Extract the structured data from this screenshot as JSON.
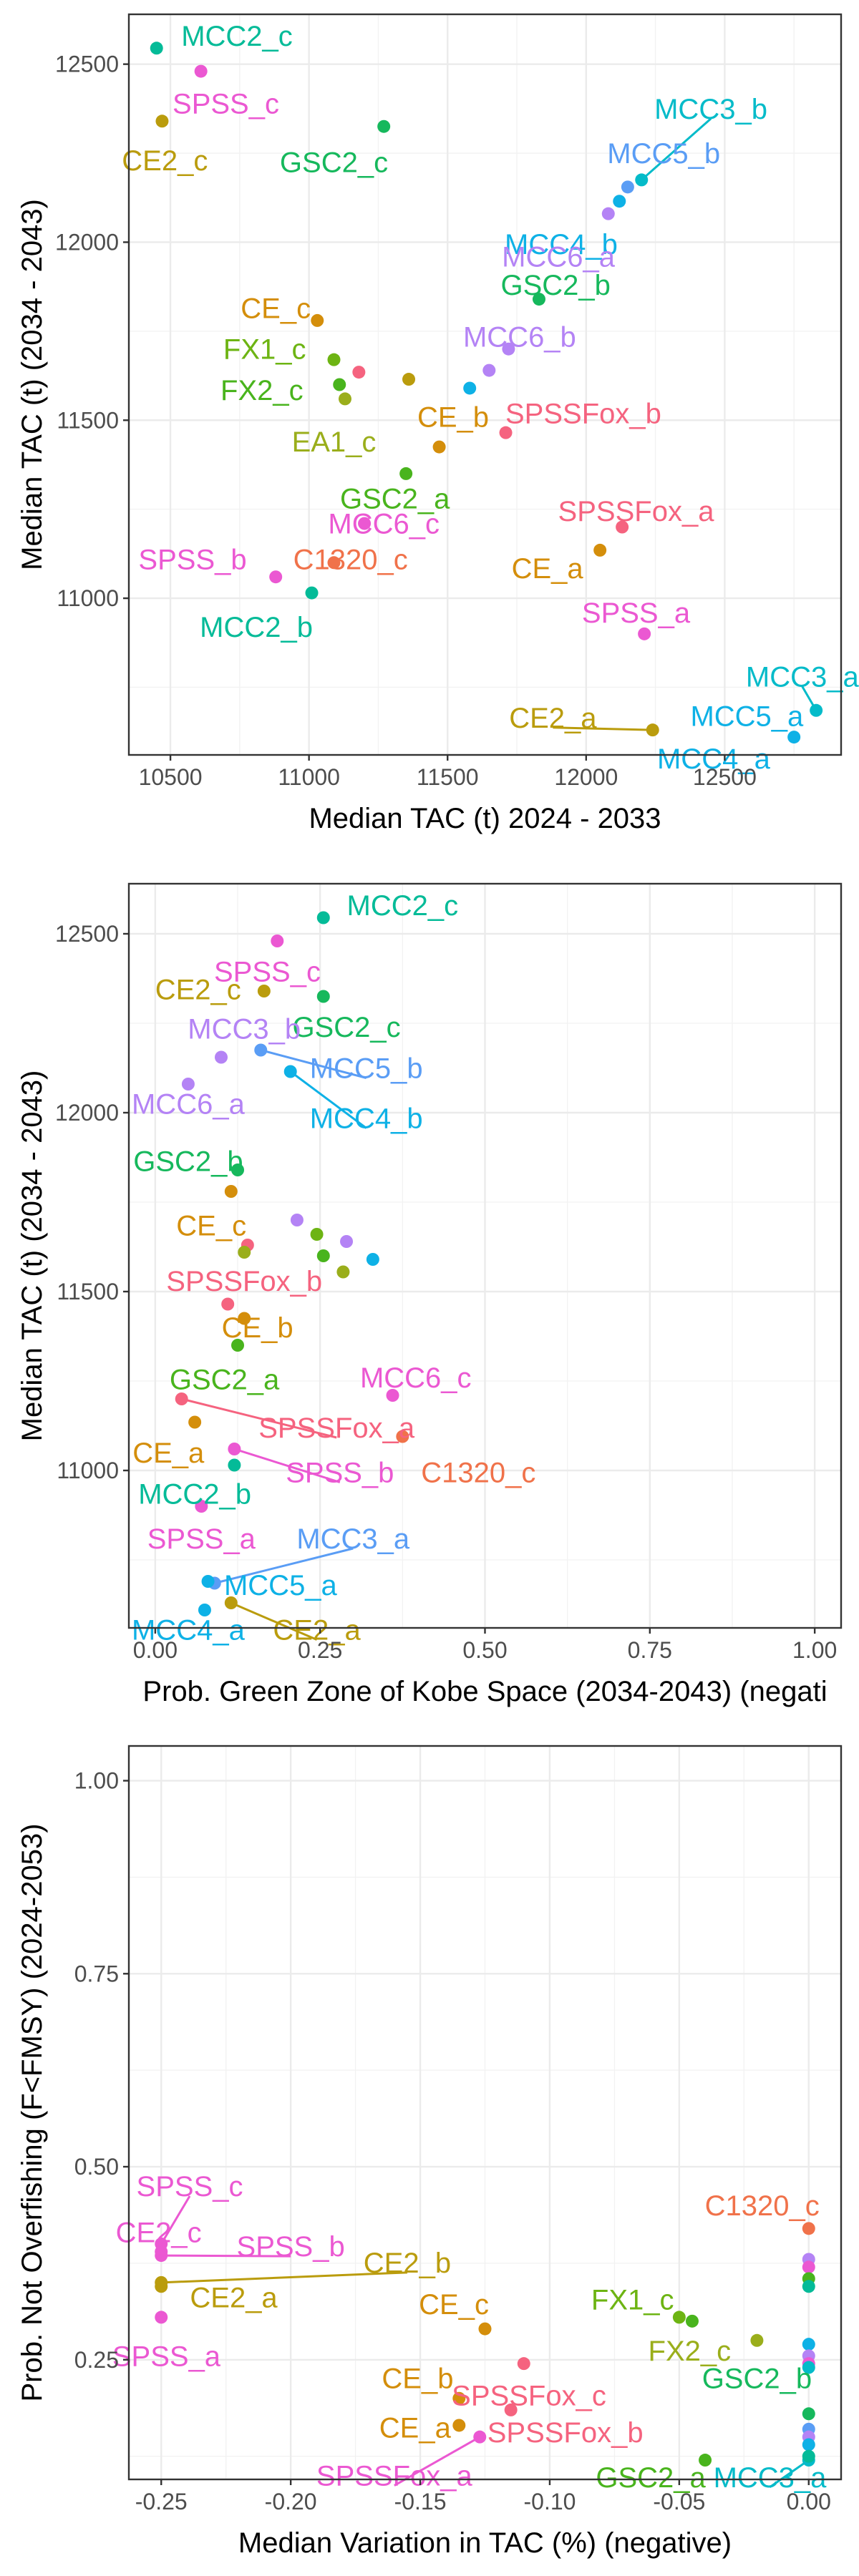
{
  "colors": {
    "C1320": "#F0724A",
    "CE": "#D48E0B",
    "CE2": "#BA9C0D",
    "EA1": "#9AAE1B",
    "FX1": "#6DB413",
    "FX2": "#49B41D",
    "GSC2": "#16B85C",
    "MCC2": "#04BB98",
    "MCC3": "#04BBC9",
    "MCC4": "#0EB1E6",
    "MCC5": "#5A9DF5",
    "MCC6": "#B483F5",
    "SPSS": "#EB58D2",
    "SPSSFox": "#F5637F"
  },
  "chart_data": [
    {
      "type": "scatter",
      "title": "",
      "xlabel": "Median TAC (t) 2024 - 2033",
      "ylabel": "Median TAC (t) (2034 - 2043)",
      "xlim": [
        10350,
        12920
      ],
      "ylim": [
        10560,
        12640
      ],
      "xticks": [
        10500,
        11000,
        11500,
        12000,
        12500
      ],
      "yticks": [
        11000,
        11500,
        12000,
        12500
      ],
      "grid": true,
      "points": [
        {
          "name": "MCC2_c",
          "x": 10450,
          "y": 12545,
          "group": "MCC2",
          "lx": 10740,
          "ly": 12580,
          "ha": "middle"
        },
        {
          "name": "SPSS_c",
          "x": 10610,
          "y": 12480,
          "group": "SPSS",
          "lx": 10700,
          "ly": 12390,
          "ha": "middle"
        },
        {
          "name": "CE2_c",
          "x": 10470,
          "y": 12340,
          "group": "CE2",
          "lx": 10480,
          "ly": 12230,
          "ha": "middle"
        },
        {
          "name": "GSC2_c",
          "x": 11270,
          "y": 12325,
          "group": "GSC2",
          "lx": 11090,
          "ly": 12225,
          "ha": "middle"
        },
        {
          "name": "MCC3_b",
          "x": 12200,
          "y": 12175,
          "group": "MCC3",
          "lx": 12450,
          "ly": 12375,
          "ha": "middle",
          "line": true
        },
        {
          "name": "MCC5_b",
          "x": 12150,
          "y": 12155,
          "group": "MCC5",
          "lx": 12280,
          "ly": 12250,
          "ha": "middle"
        },
        {
          "name": "MCC4_b",
          "x": 12120,
          "y": 12115,
          "group": "MCC4",
          "lx": 11910,
          "ly": 11995,
          "ha": "middle"
        },
        {
          "name": "MCC6_a",
          "x": 12080,
          "y": 12080,
          "group": "MCC6",
          "lx": 11900,
          "ly": 11960,
          "ha": "middle"
        },
        {
          "name": "GSC2_b",
          "x": 11830,
          "y": 11840,
          "group": "GSC2",
          "lx": 11890,
          "ly": 11880,
          "ha": "middle"
        },
        {
          "name": "MCC6_b",
          "x": 11720,
          "y": 11700,
          "group": "MCC6",
          "lx": 11760,
          "ly": 11735,
          "ha": "middle"
        },
        {
          "name": "CE_c",
          "x": 11030,
          "y": 11780,
          "group": "CE",
          "lx": 10880,
          "ly": 11815,
          "ha": "middle"
        },
        {
          "name": "FX1_c",
          "x": 11090,
          "y": 11670,
          "group": "FX1",
          "lx": 10840,
          "ly": 11700,
          "ha": "middle"
        },
        {
          "name": "FX2_c",
          "x": 11110,
          "y": 11600,
          "group": "FX2",
          "lx": 10830,
          "ly": 11585,
          "ha": "middle"
        },
        {
          "name": "EA1_c",
          "x": 11130,
          "y": 11560,
          "group": "EA1",
          "lx": 11090,
          "ly": 11440,
          "ha": "middle"
        },
        {
          "name": "x1",
          "x": 11180,
          "y": 11635,
          "group": "SPSSFox"
        },
        {
          "name": "x2",
          "x": 11360,
          "y": 11615,
          "group": "CE2"
        },
        {
          "name": "x3",
          "x": 11650,
          "y": 11640,
          "group": "MCC6"
        },
        {
          "name": "x4",
          "x": 11580,
          "y": 11590,
          "group": "MCC4"
        },
        {
          "name": "CE_b",
          "x": 11470,
          "y": 11425,
          "group": "CE",
          "lx": 11520,
          "ly": 11510,
          "ha": "middle"
        },
        {
          "name": "SPSSFox_b",
          "x": 11710,
          "y": 11465,
          "group": "SPSSFox",
          "lx": 11990,
          "ly": 11520,
          "ha": "middle"
        },
        {
          "name": "GSC2_a",
          "x": 11350,
          "y": 11350,
          "group": "FX2",
          "lx": 11310,
          "ly": 11280,
          "ha": "middle"
        },
        {
          "name": "MCC6_c",
          "x": 11200,
          "y": 11210,
          "group": "SPSS",
          "lx": 11270,
          "ly": 11210,
          "ha": "middle"
        },
        {
          "name": "C1320_c",
          "x": 11090,
          "y": 11100,
          "group": "C1320",
          "lx": 11150,
          "ly": 11110,
          "ha": "middle"
        },
        {
          "name": "SPSS_b",
          "x": 10880,
          "y": 11060,
          "group": "SPSS",
          "lx": 10580,
          "ly": 11110,
          "ha": "middle"
        },
        {
          "name": "MCC2_b",
          "x": 11010,
          "y": 11015,
          "group": "MCC2",
          "lx": 10810,
          "ly": 10920,
          "ha": "middle"
        },
        {
          "name": "SPSSFox_a",
          "x": 12130,
          "y": 11200,
          "group": "SPSSFox",
          "lx": 12180,
          "ly": 11245,
          "ha": "middle"
        },
        {
          "name": "CE_a",
          "x": 12050,
          "y": 11135,
          "group": "CE",
          "lx": 11860,
          "ly": 11085,
          "ha": "middle"
        },
        {
          "name": "SPSS_a",
          "x": 12210,
          "y": 10900,
          "group": "SPSS",
          "lx": 12180,
          "ly": 10960,
          "ha": "middle"
        },
        {
          "name": "MCC3_a",
          "x": 12830,
          "y": 10685,
          "group": "MCC3",
          "lx": 12780,
          "ly": 10780,
          "ha": "middle",
          "line": true
        },
        {
          "name": "MCC5_a",
          "x": 12750,
          "y": 10610,
          "group": "MCC4",
          "lx": 12580,
          "ly": 10670,
          "ha": "middle"
        },
        {
          "name": "MCC4_a",
          "x": 12750,
          "y": 10610,
          "group": "MCC4",
          "lx": 12460,
          "ly": 10550,
          "ha": "middle",
          "hide_point": true
        },
        {
          "name": "CE2_a",
          "x": 12240,
          "y": 10630,
          "group": "CE2",
          "lx": 11880,
          "ly": 10665,
          "ha": "middle",
          "line": true
        }
      ]
    },
    {
      "type": "scatter",
      "title": "",
      "xlabel": "Prob. Green Zone of Kobe Space (2034-2043) (negati",
      "ylabel": "Median TAC (t) (2034 - 2043)",
      "xlim": [
        -0.04,
        1.04
      ],
      "ylim": [
        10560,
        12640
      ],
      "xticks": [
        0.0,
        0.25,
        0.5,
        0.75,
        1.0
      ],
      "xtick_labels": [
        "0.00",
        "0.25",
        "0.50",
        "0.75",
        "1.00"
      ],
      "yticks": [
        11000,
        11500,
        12000,
        12500
      ],
      "grid": true,
      "points": [
        {
          "name": "MCC2_c",
          "x": 0.255,
          "y": 12545,
          "group": "MCC2",
          "lx": 0.375,
          "ly": 12580,
          "ha": "middle"
        },
        {
          "name": "SPSS_c",
          "x": 0.185,
          "y": 12480,
          "group": "SPSS",
          "lx": 0.17,
          "ly": 12395,
          "ha": "middle"
        },
        {
          "name": "CE2_c",
          "x": 0.165,
          "y": 12340,
          "group": "CE2",
          "lx": 0.065,
          "ly": 12345,
          "ha": "middle"
        },
        {
          "name": "GSC2_c",
          "x": 0.255,
          "y": 12325,
          "group": "GSC2",
          "lx": 0.29,
          "ly": 12240,
          "ha": "middle"
        },
        {
          "name": "MCC3_b",
          "x": 0.1,
          "y": 12155,
          "group": "MCC6",
          "lx": 0.135,
          "ly": 12235,
          "ha": "middle"
        },
        {
          "name": "MCC5_b",
          "x": 0.16,
          "y": 12175,
          "group": "MCC5",
          "lx": 0.32,
          "ly": 12125,
          "ha": "middle",
          "line": true
        },
        {
          "name": "MCC4_b",
          "x": 0.205,
          "y": 12115,
          "group": "MCC4",
          "lx": 0.32,
          "ly": 11985,
          "ha": "middle",
          "line": true
        },
        {
          "name": "MCC6_a",
          "x": 0.05,
          "y": 12080,
          "group": "MCC6",
          "lx": 0.05,
          "ly": 12025,
          "ha": "middle"
        },
        {
          "name": "GSC2_b",
          "x": 0.125,
          "y": 11840,
          "group": "GSC2",
          "lx": 0.05,
          "ly": 11865,
          "ha": "middle"
        },
        {
          "name": "CE_c",
          "x": 0.115,
          "y": 11780,
          "group": "CE",
          "lx": 0.085,
          "ly": 11685,
          "ha": "middle"
        },
        {
          "name": "x1",
          "x": 0.215,
          "y": 11700,
          "group": "MCC6"
        },
        {
          "name": "x2",
          "x": 0.245,
          "y": 11660,
          "group": "FX1"
        },
        {
          "name": "x3",
          "x": 0.29,
          "y": 11640,
          "group": "MCC6"
        },
        {
          "name": "x4",
          "x": 0.14,
          "y": 11630,
          "group": "SPSSFox"
        },
        {
          "name": "x5",
          "x": 0.135,
          "y": 11610,
          "group": "EA1"
        },
        {
          "name": "x6",
          "x": 0.255,
          "y": 11600,
          "group": "FX2"
        },
        {
          "name": "x7",
          "x": 0.33,
          "y": 11590,
          "group": "MCC4"
        },
        {
          "name": "x8",
          "x": 0.285,
          "y": 11555,
          "group": "EA1"
        },
        {
          "name": "SPSSFox_b",
          "x": 0.11,
          "y": 11465,
          "group": "SPSSFox",
          "lx": 0.135,
          "ly": 11530,
          "ha": "middle"
        },
        {
          "name": "CE_b",
          "x": 0.135,
          "y": 11425,
          "group": "CE",
          "lx": 0.155,
          "ly": 11400,
          "ha": "middle"
        },
        {
          "name": "GSC2_a",
          "x": 0.125,
          "y": 11350,
          "group": "FX2",
          "lx": 0.105,
          "ly": 11255,
          "ha": "middle"
        },
        {
          "name": "MCC6_c",
          "x": 0.36,
          "y": 11210,
          "group": "SPSS",
          "lx": 0.395,
          "ly": 11260,
          "ha": "middle"
        },
        {
          "name": "SPSSFox_a",
          "x": 0.04,
          "y": 11200,
          "group": "SPSSFox",
          "lx": 0.275,
          "ly": 11120,
          "ha": "middle",
          "line": true
        },
        {
          "name": "CE_a",
          "x": 0.06,
          "y": 11135,
          "group": "CE",
          "lx": 0.02,
          "ly": 11050,
          "ha": "middle"
        },
        {
          "name": "SPSS_b",
          "x": 0.12,
          "y": 11060,
          "group": "SPSS",
          "lx": 0.28,
          "ly": 10995,
          "ha": "middle",
          "line": true
        },
        {
          "name": "C1320_c",
          "x": 0.375,
          "y": 11095,
          "group": "C1320",
          "lx": 0.49,
          "ly": 10995,
          "ha": "middle"
        },
        {
          "name": "MCC2_b",
          "x": 0.12,
          "y": 11015,
          "group": "MCC2",
          "lx": 0.06,
          "ly": 10935,
          "ha": "middle"
        },
        {
          "name": "SPSS_a",
          "x": 0.07,
          "y": 10900,
          "group": "SPSS",
          "lx": 0.07,
          "ly": 10810,
          "ha": "middle"
        },
        {
          "name": "MCC3_a",
          "x": 0.09,
          "y": 10685,
          "group": "MCC5",
          "lx": 0.3,
          "ly": 10810,
          "ha": "middle",
          "line": true
        },
        {
          "name": "MCC5_a",
          "x": 0.08,
          "y": 10690,
          "group": "MCC4",
          "lx": 0.19,
          "ly": 10680,
          "ha": "middle"
        },
        {
          "name": "MCC4_a",
          "x": 0.075,
          "y": 10610,
          "group": "MCC4",
          "lx": 0.05,
          "ly": 10555,
          "ha": "middle"
        },
        {
          "name": "CE2_a",
          "x": 0.115,
          "y": 10630,
          "group": "CE2",
          "lx": 0.245,
          "ly": 10555,
          "ha": "middle",
          "line": true
        }
      ]
    },
    {
      "type": "scatter",
      "title": "",
      "xlabel": "Median Variation in TAC (%) (negative)",
      "ylabel": "Prob. Not Overfishing (F<FMSY) (2024-2053)",
      "xlim": [
        -0.2625,
        0.0125
      ],
      "ylim": [
        0.095,
        1.045
      ],
      "xticks": [
        -0.25,
        -0.2,
        -0.15,
        -0.1,
        -0.05,
        0.0
      ],
      "xtick_labels": [
        "-0.25",
        "-0.20",
        "-0.15",
        "-0.10",
        "-0.05",
        "0.00"
      ],
      "yticks": [
        0.25,
        0.5,
        0.75,
        1.0
      ],
      "ytick_labels": [
        "0.25",
        "0.50",
        "0.75",
        "1.00"
      ],
      "grid": true,
      "points": [
        {
          "name": "SPSS_c",
          "x": -0.25,
          "y": 0.4,
          "group": "SPSS",
          "lx": -0.239,
          "ly": 0.475,
          "ha": "middle",
          "line": true
        },
        {
          "name": "CE2_c",
          "x": -0.25,
          "y": 0.39,
          "group": "SPSS",
          "lx": -0.251,
          "ly": 0.415,
          "ha": "middle"
        },
        {
          "name": "SPSS_b",
          "x": -0.25,
          "y": 0.385,
          "group": "SPSS",
          "lx": -0.2,
          "ly": 0.397,
          "ha": "middle",
          "line": true
        },
        {
          "name": "CE2_b",
          "x": -0.25,
          "y": 0.35,
          "group": "CE2",
          "lx": -0.155,
          "ly": 0.376,
          "ha": "middle",
          "line": true
        },
        {
          "name": "CE2_a",
          "x": -0.25,
          "y": 0.345,
          "group": "CE2",
          "lx": -0.222,
          "ly": 0.331,
          "ha": "middle"
        },
        {
          "name": "SPSS_a",
          "x": -0.25,
          "y": 0.305,
          "group": "SPSS",
          "lx": -0.248,
          "ly": 0.255,
          "ha": "middle"
        },
        {
          "name": "C1320_c",
          "x": 0.0,
          "y": 0.42,
          "group": "C1320",
          "lx": -0.018,
          "ly": 0.45,
          "ha": "middle"
        },
        {
          "name": "FX1_c",
          "x": -0.05,
          "y": 0.305,
          "group": "FX1",
          "lx": -0.068,
          "ly": 0.328,
          "ha": "middle"
        },
        {
          "name": "x_fx",
          "x": -0.045,
          "y": 0.3,
          "group": "FX2"
        },
        {
          "name": "FX2_c",
          "x": -0.02,
          "y": 0.275,
          "group": "EA1",
          "lx": -0.046,
          "ly": 0.262,
          "ha": "middle"
        },
        {
          "name": "CE_c",
          "x": -0.125,
          "y": 0.29,
          "group": "CE",
          "lx": -0.137,
          "ly": 0.322,
          "ha": "middle"
        },
        {
          "name": "CE_b",
          "x": -0.135,
          "y": 0.2,
          "group": "CE",
          "lx": -0.151,
          "ly": 0.226,
          "ha": "middle"
        },
        {
          "name": "SPSSFox_c",
          "x": -0.11,
          "y": 0.245,
          "group": "SPSSFox",
          "lx": -0.108,
          "ly": 0.204,
          "ha": "middle"
        },
        {
          "name": "CE_a",
          "x": -0.135,
          "y": 0.165,
          "group": "CE",
          "lx": -0.152,
          "ly": 0.162,
          "ha": "middle"
        },
        {
          "name": "SPSSFox_b",
          "x": -0.115,
          "y": 0.185,
          "group": "SPSSFox",
          "lx": -0.094,
          "ly": 0.156,
          "ha": "middle"
        },
        {
          "name": "SPSSFox_a",
          "x": -0.127,
          "y": 0.15,
          "group": "SPSS",
          "lx": -0.16,
          "ly": 0.1,
          "ha": "middle",
          "line": true
        },
        {
          "name": "GSC2_b",
          "x": 0.0,
          "y": 0.18,
          "group": "GSC2",
          "lx": -0.02,
          "ly": 0.226,
          "ha": "middle"
        },
        {
          "name": "GSC2_a",
          "x": -0.04,
          "y": 0.12,
          "group": "FX2",
          "lx": -0.061,
          "ly": 0.098,
          "ha": "middle"
        },
        {
          "name": "MCC3_a",
          "x": 0.0,
          "y": 0.12,
          "group": "MCC3",
          "lx": -0.015,
          "ly": 0.098,
          "ha": "middle",
          "line": true
        },
        {
          "name": "z1",
          "x": 0.0,
          "y": 0.38,
          "group": "MCC6"
        },
        {
          "name": "z2",
          "x": 0.0,
          "y": 0.37,
          "group": "SPSS"
        },
        {
          "name": "z3",
          "x": 0.0,
          "y": 0.355,
          "group": "FX2"
        },
        {
          "name": "z4",
          "x": 0.0,
          "y": 0.345,
          "group": "MCC2"
        },
        {
          "name": "z5",
          "x": 0.0,
          "y": 0.27,
          "group": "MCC4"
        },
        {
          "name": "z6",
          "x": 0.0,
          "y": 0.255,
          "group": "MCC6"
        },
        {
          "name": "z7",
          "x": 0.0,
          "y": 0.245,
          "group": "SPSS"
        },
        {
          "name": "z8",
          "x": 0.0,
          "y": 0.24,
          "group": "MCC3"
        },
        {
          "name": "z9",
          "x": 0.0,
          "y": 0.16,
          "group": "MCC5"
        },
        {
          "name": "z10",
          "x": 0.0,
          "y": 0.15,
          "group": "MCC6"
        },
        {
          "name": "z11",
          "x": 0.0,
          "y": 0.14,
          "group": "MCC4"
        },
        {
          "name": "z12",
          "x": 0.0,
          "y": 0.125,
          "group": "MCC2"
        }
      ]
    }
  ]
}
